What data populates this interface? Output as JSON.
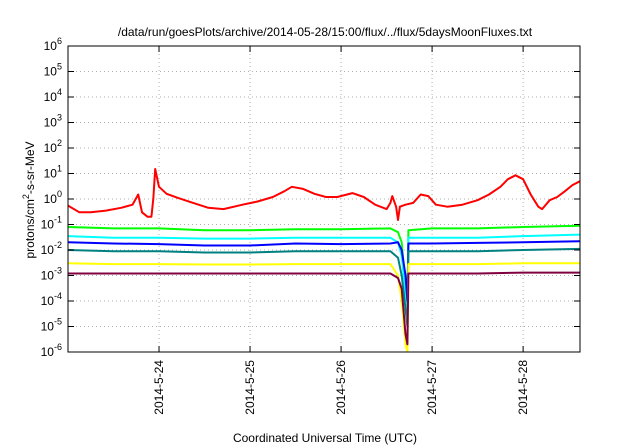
{
  "chart_data": {
    "type": "line",
    "title": "/data/run/goesPlots/archive/2014-05-28/15:00/flux/../flux/5daysMoonFluxes.txt",
    "xlabel": "Coordinated Universal Time (UTC)",
    "ylabel": "protons/cm^2-s-sr-MeV",
    "ylabel_parts": {
      "base": "protons/cm",
      "sup": "2",
      "rest": "-s-sr-MeV"
    },
    "xscale": "time",
    "xlim": [
      "2014-05-23 00:00",
      "2014-05-28 15:00"
    ],
    "x_ticks": [
      "2014-5-24",
      "2014-5-25",
      "2014-5-26",
      "2014-5-27",
      "2014-5-28"
    ],
    "yscale": "log",
    "ylim": [
      1e-06,
      1000000.0
    ],
    "y_ticks": [
      {
        "base": "10",
        "exp": "-6"
      },
      {
        "base": "10",
        "exp": "-5"
      },
      {
        "base": "10",
        "exp": "-4"
      },
      {
        "base": "10",
        "exp": "-3"
      },
      {
        "base": "10",
        "exp": "-2"
      },
      {
        "base": "10",
        "exp": "-1"
      },
      {
        "base": "10",
        "exp": "0"
      },
      {
        "base": "10",
        "exp": "1"
      },
      {
        "base": "10",
        "exp": "2"
      },
      {
        "base": "10",
        "exp": "3"
      },
      {
        "base": "10",
        "exp": "4"
      },
      {
        "base": "10",
        "exp": "5"
      },
      {
        "base": "10",
        "exp": "6"
      }
    ],
    "grid": true,
    "legend": "none",
    "series": [
      {
        "color": "#ff0000",
        "points": [
          [
            "2014-05-23 00:00",
            0.55
          ],
          [
            "2014-05-23 03:00",
            0.3
          ],
          [
            "2014-05-23 06:00",
            0.3
          ],
          [
            "2014-05-23 10:00",
            0.35
          ],
          [
            "2014-05-23 14:00",
            0.45
          ],
          [
            "2014-05-23 17:00",
            0.6
          ],
          [
            "2014-05-23 18:30",
            1.5
          ],
          [
            "2014-05-23 19:30",
            0.3
          ],
          [
            "2014-05-23 21:00",
            0.2
          ],
          [
            "2014-05-23 22:00",
            0.2
          ],
          [
            "2014-05-23 22:30",
            1
          ],
          [
            "2014-05-23 23:00",
            15
          ],
          [
            "2014-05-24 00:00",
            3
          ],
          [
            "2014-05-24 02:00",
            1.6
          ],
          [
            "2014-05-24 05:00",
            1.1
          ],
          [
            "2014-05-24 09:00",
            0.7
          ],
          [
            "2014-05-24 13:00",
            0.45
          ],
          [
            "2014-05-24 17:00",
            0.4
          ],
          [
            "2014-05-24 22:00",
            0.6
          ],
          [
            "2014-05-25 02:00",
            0.8
          ],
          [
            "2014-05-25 06:00",
            1.2
          ],
          [
            "2014-05-25 09:00",
            2
          ],
          [
            "2014-05-25 11:00",
            3
          ],
          [
            "2014-05-25 14:00",
            2.5
          ],
          [
            "2014-05-25 17:00",
            1.6
          ],
          [
            "2014-05-25 20:00",
            1.2
          ],
          [
            "2014-05-25 23:00",
            1.2
          ],
          [
            "2014-05-26 03:00",
            1.7
          ],
          [
            "2014-05-26 06:00",
            1.2
          ],
          [
            "2014-05-26 09:00",
            0.6
          ],
          [
            "2014-05-26 12:00",
            0.4
          ],
          [
            "2014-05-26 13:00",
            0.7
          ],
          [
            "2014-05-26 13:30",
            1.3
          ],
          [
            "2014-05-26 14:30",
            0.5
          ],
          [
            "2014-05-26 15:00",
            0.15
          ],
          [
            "2014-05-26 15:30",
            0.5
          ],
          [
            "2014-05-26 17:00",
            0.6
          ],
          [
            "2014-05-26 19:00",
            0.7
          ],
          [
            "2014-05-26 21:00",
            1.5
          ],
          [
            "2014-05-26 23:00",
            1.3
          ],
          [
            "2014-05-27 01:00",
            0.6
          ],
          [
            "2014-05-27 04:00",
            0.5
          ],
          [
            "2014-05-27 08:00",
            0.6
          ],
          [
            "2014-05-27 12:00",
            0.9
          ],
          [
            "2014-05-27 15:00",
            1.5
          ],
          [
            "2014-05-27 18:00",
            3
          ],
          [
            "2014-05-27 20:00",
            6
          ],
          [
            "2014-05-27 22:00",
            8.5
          ],
          [
            "2014-05-28 00:00",
            6
          ],
          [
            "2014-05-28 02:00",
            1.5
          ],
          [
            "2014-05-28 04:00",
            0.5
          ],
          [
            "2014-05-28 05:00",
            0.4
          ],
          [
            "2014-05-28 07:00",
            0.9
          ],
          [
            "2014-05-28 09:00",
            1.2
          ],
          [
            "2014-05-28 11:00",
            2
          ],
          [
            "2014-05-28 13:00",
            3.5
          ],
          [
            "2014-05-28 15:00",
            5
          ]
        ]
      },
      {
        "color": "#00ff00",
        "points": [
          [
            "2014-05-23 00:00",
            0.08
          ],
          [
            "2014-05-23 12:00",
            0.07
          ],
          [
            "2014-05-24 00:00",
            0.07
          ],
          [
            "2014-05-24 12:00",
            0.06
          ],
          [
            "2014-05-25 00:00",
            0.06
          ],
          [
            "2014-05-25 12:00",
            0.065
          ],
          [
            "2014-05-26 00:00",
            0.065
          ],
          [
            "2014-05-26 13:00",
            0.07
          ],
          [
            "2014-05-26 15:00",
            0.05
          ],
          [
            "2014-05-26 16:00",
            0.02
          ],
          [
            "2014-05-26 17:00",
            0.0004
          ],
          [
            "2014-05-26 17:30",
            0.0001
          ],
          [
            "2014-05-26 17:45",
            0.06
          ],
          [
            "2014-05-27 00:00",
            0.07
          ],
          [
            "2014-05-27 12:00",
            0.07
          ],
          [
            "2014-05-28 00:00",
            0.08
          ],
          [
            "2014-05-28 15:00",
            0.09
          ]
        ]
      },
      {
        "color": "#00ffff",
        "points": [
          [
            "2014-05-23 00:00",
            0.035
          ],
          [
            "2014-05-23 12:00",
            0.03
          ],
          [
            "2014-05-24 00:00",
            0.03
          ],
          [
            "2014-05-24 12:00",
            0.028
          ],
          [
            "2014-05-25 00:00",
            0.028
          ],
          [
            "2014-05-25 12:00",
            0.03
          ],
          [
            "2014-05-26 00:00",
            0.03
          ],
          [
            "2014-05-26 13:00",
            0.03
          ],
          [
            "2014-05-26 15:00",
            0.02
          ],
          [
            "2014-05-26 16:00",
            0.006
          ],
          [
            "2014-05-26 17:00",
            0.0002
          ],
          [
            "2014-05-26 17:30",
            5e-05
          ],
          [
            "2014-05-26 17:45",
            0.03
          ],
          [
            "2014-05-27 00:00",
            0.03
          ],
          [
            "2014-05-27 12:00",
            0.03
          ],
          [
            "2014-05-28 00:00",
            0.035
          ],
          [
            "2014-05-28 15:00",
            0.04
          ]
        ]
      },
      {
        "color": "#0000ff",
        "points": [
          [
            "2014-05-23 00:00",
            0.02
          ],
          [
            "2014-05-23 12:00",
            0.018
          ],
          [
            "2014-05-24 00:00",
            0.017
          ],
          [
            "2014-05-24 12:00",
            0.015
          ],
          [
            "2014-05-25 00:00",
            0.015
          ],
          [
            "2014-05-25 12:00",
            0.018
          ],
          [
            "2014-05-26 00:00",
            0.017
          ],
          [
            "2014-05-26 13:00",
            0.018
          ],
          [
            "2014-05-26 15:00",
            0.02
          ],
          [
            "2014-05-26 16:00",
            0.01
          ],
          [
            "2014-05-26 17:00",
            0.001
          ],
          [
            "2014-05-26 17:30",
            0.0001
          ],
          [
            "2014-05-26 17:45",
            0.018
          ],
          [
            "2014-05-27 00:00",
            0.018
          ],
          [
            "2014-05-27 12:00",
            0.019
          ],
          [
            "2014-05-28 00:00",
            0.02
          ],
          [
            "2014-05-28 15:00",
            0.022
          ]
        ]
      },
      {
        "color": "#008080",
        "points": [
          [
            "2014-05-23 00:00",
            0.01
          ],
          [
            "2014-05-23 12:00",
            0.009
          ],
          [
            "2014-05-24 00:00",
            0.009
          ],
          [
            "2014-05-24 12:00",
            0.008
          ],
          [
            "2014-05-25 00:00",
            0.008
          ],
          [
            "2014-05-25 12:00",
            0.009
          ],
          [
            "2014-05-26 00:00",
            0.009
          ],
          [
            "2014-05-26 13:00",
            0.009
          ],
          [
            "2014-05-26 15:00",
            0.005
          ],
          [
            "2014-05-26 16:00",
            0.001
          ],
          [
            "2014-05-26 17:00",
            5e-05
          ],
          [
            "2014-05-26 17:30",
            1e-05
          ],
          [
            "2014-05-26 17:45",
            0.009
          ],
          [
            "2014-05-27 00:00",
            0.009
          ],
          [
            "2014-05-27 12:00",
            0.009
          ],
          [
            "2014-05-28 00:00",
            0.01
          ],
          [
            "2014-05-28 15:00",
            0.011
          ]
        ]
      },
      {
        "color": "#ffff00",
        "points": [
          [
            "2014-05-23 00:00",
            0.003
          ],
          [
            "2014-05-23 12:00",
            0.0028
          ],
          [
            "2014-05-24 00:00",
            0.0028
          ],
          [
            "2014-05-24 12:00",
            0.0027
          ],
          [
            "2014-05-25 00:00",
            0.0027
          ],
          [
            "2014-05-25 12:00",
            0.0028
          ],
          [
            "2014-05-26 00:00",
            0.0028
          ],
          [
            "2014-05-26 13:00",
            0.0028
          ],
          [
            "2014-05-26 15:00",
            0.001
          ],
          [
            "2014-05-26 16:00",
            0.0001
          ],
          [
            "2014-05-26 17:00",
            2e-06
          ],
          [
            "2014-05-26 17:30",
            1e-06
          ],
          [
            "2014-05-26 17:45",
            0.0028
          ],
          [
            "2014-05-27 00:00",
            0.0028
          ],
          [
            "2014-05-27 12:00",
            0.0028
          ],
          [
            "2014-05-28 00:00",
            0.003
          ],
          [
            "2014-05-28 15:00",
            0.003
          ]
        ]
      },
      {
        "color": "#800040",
        "points": [
          [
            "2014-05-23 00:00",
            0.0012
          ],
          [
            "2014-05-23 12:00",
            0.0012
          ],
          [
            "2014-05-24 00:00",
            0.0012
          ],
          [
            "2014-05-24 12:00",
            0.0012
          ],
          [
            "2014-05-25 00:00",
            0.0012
          ],
          [
            "2014-05-25 12:00",
            0.0012
          ],
          [
            "2014-05-26 00:00",
            0.0012
          ],
          [
            "2014-05-26 13:00",
            0.0012
          ],
          [
            "2014-05-26 15:00",
            0.0008
          ],
          [
            "2014-05-26 16:00",
            0.0003
          ],
          [
            "2014-05-26 17:00",
            5e-06
          ],
          [
            "2014-05-26 17:30",
            2e-06
          ],
          [
            "2014-05-26 17:45",
            0.0012
          ],
          [
            "2014-05-27 00:00",
            0.0012
          ],
          [
            "2014-05-27 12:00",
            0.0012
          ],
          [
            "2014-05-28 00:00",
            0.0013
          ],
          [
            "2014-05-28 15:00",
            0.0013
          ]
        ]
      }
    ]
  }
}
